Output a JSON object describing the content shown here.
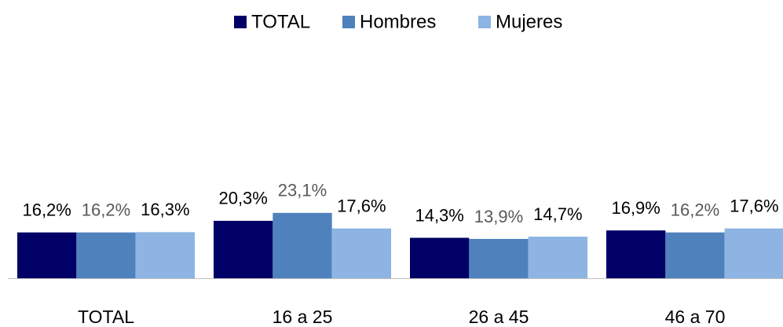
{
  "chart_data": {
    "type": "bar",
    "categories": [
      "TOTAL",
      "16 a 25",
      "26 a 45",
      "46 a 70"
    ],
    "series": [
      {
        "name": "TOTAL",
        "color": "#000066",
        "label_color": "#000000",
        "values": [
          16.2,
          20.3,
          14.3,
          16.9
        ],
        "value_labels": [
          "16,2%",
          "20,3%",
          "14,3%",
          "16,9%"
        ]
      },
      {
        "name": "Hombres",
        "color": "#4f81bd",
        "label_color": "#595959",
        "values": [
          16.2,
          23.1,
          13.9,
          16.2
        ],
        "value_labels": [
          "16,2%",
          "23,1%",
          "13,9%",
          "16,2%"
        ]
      },
      {
        "name": "Mujeres",
        "color": "#8db4e2",
        "label_color": "#000000",
        "values": [
          16.3,
          17.6,
          14.7,
          17.6
        ],
        "value_labels": [
          "16,3%",
          "17,6%",
          "14,7%",
          "17,6%"
        ]
      }
    ],
    "legend": "top"
  }
}
